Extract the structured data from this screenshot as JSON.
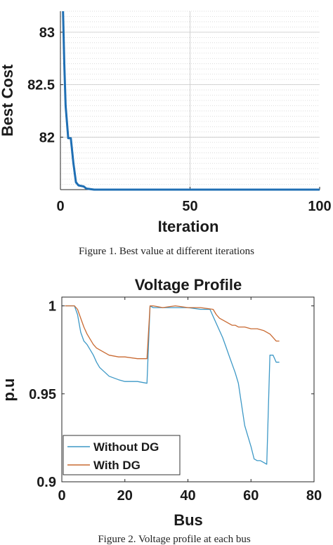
{
  "chart_data": [
    {
      "type": "line",
      "title": "",
      "xlabel": "Iteration",
      "ylabel": "Best Cost",
      "xlim": [
        0,
        100
      ],
      "ylim": [
        81.5,
        83.2
      ],
      "x_ticks": [
        "0",
        "50",
        "100"
      ],
      "y_ticks": [
        "82",
        "82.5",
        "83"
      ],
      "grid": "on",
      "series": [
        {
          "color": "#1f6fb4",
          "x": [
            1,
            1.5,
            2,
            2.5,
            3,
            4,
            5,
            6,
            7,
            9,
            10,
            13,
            20,
            50,
            100
          ],
          "y": [
            83.2,
            82.7,
            82.3,
            82.15,
            81.99,
            81.99,
            81.75,
            81.57,
            81.54,
            81.53,
            81.51,
            81.5,
            81.5,
            81.5,
            81.5
          ]
        }
      ],
      "caption": "Figure 1. Best value at different iterations"
    },
    {
      "type": "line",
      "title": "Voltage Profile",
      "xlabel": "Bus",
      "ylabel": "p.u",
      "xlim": [
        0,
        80
      ],
      "ylim": [
        0.9,
        1.005
      ],
      "x_ticks": [
        "0",
        "20",
        "40",
        "60",
        "80"
      ],
      "y_ticks": [
        "0.9",
        "0.95",
        "1"
      ],
      "grid": "off",
      "legend_position": "bottom-left",
      "series": [
        {
          "name": "Without DG",
          "color": "#3d98c6",
          "x": [
            1,
            4,
            5,
            6,
            7,
            8,
            9,
            10,
            11,
            12,
            15,
            18,
            20,
            24,
            27,
            28,
            29,
            32,
            36,
            40,
            44,
            47,
            48,
            49,
            50,
            51,
            52,
            53,
            54,
            55,
            56,
            57,
            58,
            59,
            60,
            61,
            62,
            63,
            64,
            65,
            66,
            67,
            68,
            69
          ],
          "y": [
            1.0,
            1.0,
            0.995,
            0.985,
            0.98,
            0.978,
            0.975,
            0.972,
            0.968,
            0.965,
            0.96,
            0.958,
            0.957,
            0.957,
            0.956,
            1.0,
            0.999,
            0.999,
            0.999,
            0.999,
            0.998,
            0.998,
            0.994,
            0.99,
            0.986,
            0.982,
            0.977,
            0.972,
            0.967,
            0.962,
            0.956,
            0.944,
            0.932,
            0.926,
            0.92,
            0.913,
            0.912,
            0.912,
            0.911,
            0.91,
            0.972,
            0.972,
            0.968,
            0.968
          ]
        },
        {
          "name": "With DG",
          "color": "#c96a32",
          "x": [
            1,
            4,
            5,
            6,
            7,
            8,
            9,
            10,
            11,
            12,
            15,
            18,
            20,
            24,
            27,
            28,
            29,
            32,
            36,
            40,
            44,
            48,
            49,
            50,
            51,
            52,
            53,
            54,
            55,
            56,
            58,
            60,
            62,
            64,
            66,
            67,
            68,
            69
          ],
          "y": [
            1.0,
            1.0,
            0.998,
            0.993,
            0.988,
            0.984,
            0.981,
            0.978,
            0.976,
            0.975,
            0.972,
            0.971,
            0.971,
            0.97,
            0.97,
            1.0,
            1.0,
            0.999,
            1.0,
            0.999,
            0.999,
            0.998,
            0.995,
            0.993,
            0.992,
            0.991,
            0.99,
            0.989,
            0.989,
            0.988,
            0.988,
            0.987,
            0.987,
            0.986,
            0.984,
            0.982,
            0.98,
            0.98
          ]
        }
      ],
      "caption": "Figure 2. Voltage profile at each bus"
    }
  ]
}
